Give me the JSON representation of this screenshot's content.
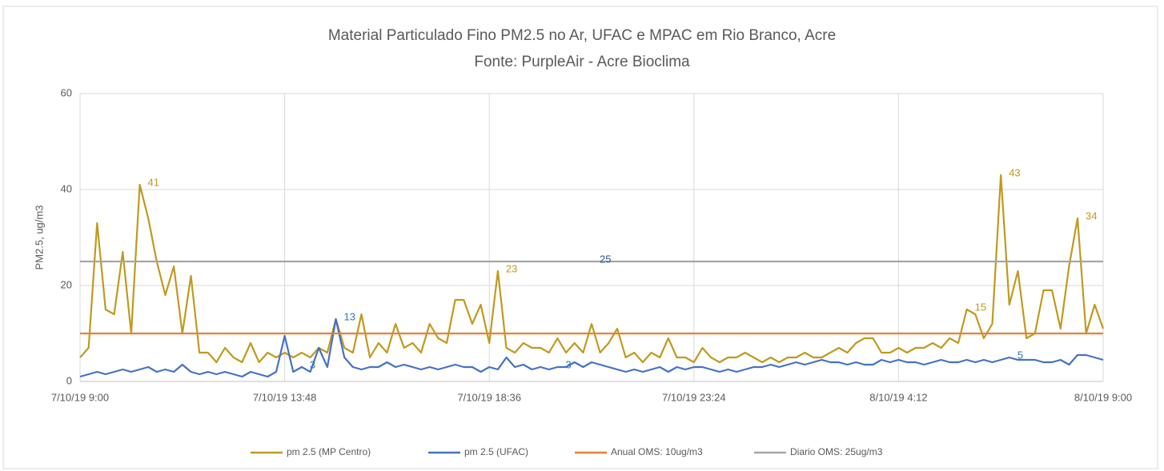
{
  "chart_data": {
    "type": "line",
    "title": "Material Particulado Fino PM2.5 no Ar,  UFAC e  MPAC em Rio Branco, Acre",
    "subtitle": "Fonte: PurpleAir - Acre Bioclima",
    "y_label": "PM2.5, ug/m3",
    "categories": [
      "7/10/19 9:00",
      null,
      null,
      null,
      null,
      null,
      null,
      null,
      null,
      null,
      null,
      null,
      null,
      null,
      null,
      null,
      null,
      null,
      null,
      null,
      null,
      null,
      null,
      null,
      "7/10/19 13:48",
      null,
      null,
      null,
      null,
      null,
      null,
      null,
      null,
      null,
      null,
      null,
      null,
      null,
      null,
      null,
      null,
      null,
      null,
      null,
      null,
      null,
      null,
      null,
      "7/10/19 18:36",
      null,
      null,
      null,
      null,
      null,
      null,
      null,
      null,
      null,
      null,
      null,
      null,
      null,
      null,
      null,
      null,
      null,
      null,
      null,
      null,
      null,
      null,
      null,
      "7/10/19 23:24",
      null,
      null,
      null,
      null,
      null,
      null,
      null,
      null,
      null,
      null,
      null,
      null,
      null,
      null,
      null,
      null,
      null,
      null,
      null,
      null,
      null,
      null,
      null,
      "8/10/19 4:12",
      null,
      null,
      null,
      null,
      null,
      null,
      null,
      null,
      null,
      null,
      null,
      null,
      null,
      null,
      null,
      null,
      null,
      null,
      null,
      null,
      null,
      null,
      null,
      "8/10/19 9:00"
    ],
    "ylim": [
      0,
      60
    ],
    "yticks": [
      0,
      20,
      40,
      60
    ],
    "grid": true,
    "legend": "bottom",
    "series": [
      {
        "name": "pm 2.5 (MP Centro)",
        "color": "#c09a1e",
        "label_color": "#c09a1e",
        "values": [
          5,
          7,
          33,
          15,
          14,
          27,
          10,
          41,
          34,
          25,
          18,
          24,
          10,
          22,
          6,
          6,
          4,
          7,
          5,
          4,
          8,
          4,
          6,
          5,
          6,
          5,
          6,
          5,
          7,
          6,
          13,
          7,
          6,
          14,
          5,
          8,
          6,
          12,
          7,
          8,
          6,
          12,
          9,
          8,
          17,
          17,
          12,
          16,
          8,
          23,
          7,
          6,
          8,
          7,
          7,
          6,
          9,
          6,
          8,
          6,
          12,
          6,
          8,
          11,
          5,
          6,
          4,
          6,
          5,
          9,
          5,
          5,
          4,
          7,
          5,
          4,
          5,
          5,
          6,
          5,
          4,
          5,
          4,
          5,
          5,
          6,
          5,
          5,
          6,
          7,
          6,
          8,
          9,
          9,
          6,
          6,
          7,
          6,
          7,
          7,
          8,
          7,
          9,
          8,
          15,
          14,
          9,
          12,
          43,
          16,
          23,
          9,
          10,
          19,
          19,
          11,
          24,
          34,
          10,
          16,
          11
        ],
        "value_labels": [
          null,
          null,
          null,
          null,
          null,
          null,
          null,
          "41",
          null,
          null,
          null,
          null,
          null,
          null,
          null,
          null,
          null,
          null,
          null,
          null,
          null,
          null,
          null,
          null,
          null,
          null,
          null,
          null,
          null,
          null,
          null,
          null,
          null,
          null,
          null,
          null,
          null,
          null,
          null,
          null,
          null,
          null,
          null,
          null,
          null,
          null,
          null,
          null,
          null,
          "23",
          null,
          null,
          null,
          null,
          null,
          null,
          null,
          null,
          null,
          null,
          null,
          null,
          null,
          null,
          null,
          null,
          null,
          null,
          null,
          null,
          null,
          null,
          null,
          null,
          null,
          null,
          null,
          null,
          null,
          null,
          null,
          null,
          null,
          null,
          null,
          null,
          null,
          null,
          null,
          null,
          null,
          null,
          null,
          null,
          null,
          null,
          null,
          null,
          null,
          null,
          null,
          null,
          null,
          null,
          "15",
          null,
          null,
          null,
          "43",
          null,
          null,
          null,
          null,
          null,
          null,
          null,
          null,
          "34",
          null,
          null,
          null
        ]
      },
      {
        "name": "pm 2.5 (UFAC)",
        "color": "#4472c4",
        "label_color": "#2f75b5",
        "values": [
          1,
          1.5,
          2,
          1.5,
          2,
          2.5,
          2,
          2.5,
          3,
          2,
          2.5,
          2,
          3.5,
          2,
          1.5,
          2,
          1.5,
          2,
          1.5,
          1,
          2,
          1.5,
          1,
          2,
          9.5,
          2,
          3,
          2,
          7,
          3,
          13,
          5,
          3,
          2.5,
          3,
          3,
          4,
          3,
          3.5,
          3,
          2.5,
          3,
          2.5,
          3,
          3.5,
          3,
          3,
          2,
          3,
          2.5,
          5,
          3,
          3.5,
          2.5,
          3,
          2.5,
          3,
          3,
          4,
          3,
          4,
          3.5,
          3,
          2.5,
          2,
          2.5,
          2,
          2.5,
          3,
          2,
          3,
          2.5,
          3,
          3,
          2.5,
          2,
          2.5,
          2,
          2.5,
          3,
          3,
          3.5,
          3,
          3.5,
          4,
          3.5,
          4,
          4.5,
          4,
          4,
          3.5,
          4,
          3.5,
          3.5,
          4.5,
          4,
          4.5,
          4,
          4,
          3.5,
          4,
          4.5,
          4,
          4,
          4.5,
          4,
          4.5,
          4,
          4.5,
          5,
          4.5,
          4.5,
          4.5,
          4,
          4,
          4.5,
          3.5,
          5.5,
          5.5,
          5,
          4.5
        ],
        "value_labels": [
          null,
          null,
          null,
          null,
          null,
          null,
          null,
          null,
          null,
          null,
          null,
          null,
          null,
          null,
          null,
          null,
          null,
          null,
          null,
          null,
          null,
          null,
          null,
          null,
          null,
          null,
          "3",
          null,
          null,
          null,
          "13",
          null,
          null,
          null,
          null,
          null,
          null,
          null,
          null,
          null,
          null,
          null,
          null,
          null,
          null,
          null,
          null,
          null,
          null,
          null,
          null,
          null,
          null,
          null,
          null,
          null,
          "3",
          null,
          null,
          null,
          null,
          null,
          null,
          null,
          null,
          null,
          null,
          null,
          null,
          null,
          null,
          null,
          null,
          null,
          null,
          null,
          null,
          null,
          null,
          null,
          null,
          null,
          null,
          null,
          null,
          null,
          null,
          null,
          null,
          null,
          null,
          null,
          null,
          null,
          null,
          null,
          null,
          null,
          null,
          null,
          null,
          null,
          null,
          null,
          null,
          null,
          null,
          null,
          null,
          "5",
          null,
          null,
          null,
          null,
          null,
          null,
          null,
          null,
          null,
          null,
          null
        ]
      },
      {
        "name": "Anual OMS: 10ug/m3",
        "color": "#ed7d31",
        "values": [
          10,
          10,
          10,
          10,
          10,
          10,
          10,
          10,
          10,
          10,
          10,
          10,
          10,
          10,
          10,
          10,
          10,
          10,
          10,
          10,
          10,
          10,
          10,
          10,
          10,
          10,
          10,
          10,
          10,
          10,
          10,
          10,
          10,
          10,
          10,
          10,
          10,
          10,
          10,
          10,
          10,
          10,
          10,
          10,
          10,
          10,
          10,
          10,
          10,
          10,
          10,
          10,
          10,
          10,
          10,
          10,
          10,
          10,
          10,
          10,
          10,
          10,
          10,
          10,
          10,
          10,
          10,
          10,
          10,
          10,
          10,
          10,
          10,
          10,
          10,
          10,
          10,
          10,
          10,
          10,
          10,
          10,
          10,
          10,
          10,
          10,
          10,
          10,
          10,
          10,
          10,
          10,
          10,
          10,
          10,
          10,
          10,
          10,
          10,
          10,
          10,
          10,
          10,
          10,
          10,
          10,
          10,
          10,
          10,
          10,
          10,
          10,
          10,
          10,
          10,
          10,
          10,
          10,
          10,
          10,
          10
        ]
      },
      {
        "name": "Diario OMS: 25ug/m3",
        "color": "#a5a5a5",
        "label_color": "#2f5597",
        "values": [
          25,
          25,
          25,
          25,
          25,
          25,
          25,
          25,
          25,
          25,
          25,
          25,
          25,
          25,
          25,
          25,
          25,
          25,
          25,
          25,
          25,
          25,
          25,
          25,
          25,
          25,
          25,
          25,
          25,
          25,
          25,
          25,
          25,
          25,
          25,
          25,
          25,
          25,
          25,
          25,
          25,
          25,
          25,
          25,
          25,
          25,
          25,
          25,
          25,
          25,
          25,
          25,
          25,
          25,
          25,
          25,
          25,
          25,
          25,
          25,
          25,
          25,
          25,
          25,
          25,
          25,
          25,
          25,
          25,
          25,
          25,
          25,
          25,
          25,
          25,
          25,
          25,
          25,
          25,
          25,
          25,
          25,
          25,
          25,
          25,
          25,
          25,
          25,
          25,
          25,
          25,
          25,
          25,
          25,
          25,
          25,
          25,
          25,
          25,
          25,
          25,
          25,
          25,
          25,
          25,
          25,
          25,
          25,
          25,
          25,
          25,
          25,
          25,
          25,
          25,
          25,
          25,
          25,
          25,
          25,
          25
        ],
        "value_labels": [
          null,
          null,
          null,
          null,
          null,
          null,
          null,
          null,
          null,
          null,
          null,
          null,
          null,
          null,
          null,
          null,
          null,
          null,
          null,
          null,
          null,
          null,
          null,
          null,
          null,
          null,
          null,
          null,
          null,
          null,
          null,
          null,
          null,
          null,
          null,
          null,
          null,
          null,
          null,
          null,
          null,
          null,
          null,
          null,
          null,
          null,
          null,
          null,
          null,
          null,
          null,
          null,
          null,
          null,
          null,
          null,
          null,
          null,
          null,
          null,
          "25",
          null,
          null,
          null,
          null,
          null,
          null,
          null,
          null,
          null,
          null,
          null,
          null,
          null,
          null,
          null,
          null,
          null,
          null,
          null,
          null,
          null,
          null,
          null,
          null,
          null,
          null,
          null,
          null,
          null,
          null,
          null,
          null,
          null,
          null,
          null,
          null,
          null,
          null,
          null,
          null,
          null,
          null,
          null,
          null,
          null,
          null,
          null,
          null,
          null,
          null,
          null,
          null,
          null,
          null,
          null,
          null,
          null,
          null,
          null,
          null
        ]
      }
    ]
  }
}
